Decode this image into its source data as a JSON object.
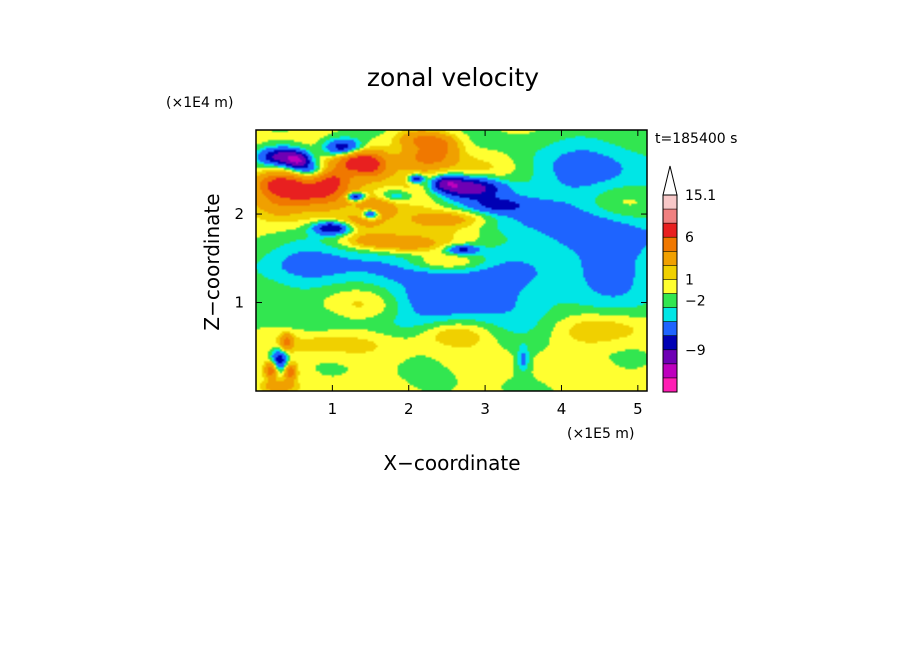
{
  "chart_data": {
    "type": "heatmap",
    "title": "zonal velocity",
    "xlabel": "X−coordinate",
    "ylabel": "Z−coordinate",
    "x_scale_label": "(×1E5 m)",
    "y_scale_label": "(×1E4 m)",
    "time_label": "t=185400 s",
    "xlim": [
      0,
      5.12
    ],
    "ylim": [
      0,
      2.95
    ],
    "x_ticks": [
      {
        "value": 1,
        "label": "1"
      },
      {
        "value": 2,
        "label": "2"
      },
      {
        "value": 3,
        "label": "3"
      },
      {
        "value": 4,
        "label": "4"
      },
      {
        "value": 5,
        "label": "5"
      }
    ],
    "y_ticks": [
      {
        "value": 1,
        "label": "1"
      },
      {
        "value": 2,
        "label": "2"
      }
    ],
    "colorbar": {
      "labels": [
        "15.1",
        "6",
        "1",
        "−2",
        "−9"
      ],
      "colors": [
        "#f8c8c8",
        "#f08080",
        "#e82020",
        "#f07800",
        "#f0a000",
        "#f0d000",
        "#ffff30",
        "#32e650",
        "#00e6e6",
        "#1e64ff",
        "#0000b4",
        "#6e00b4",
        "#be00be",
        "#ff1eb4"
      ]
    },
    "features": [
      {
        "x": 3.5,
        "z": 2.0,
        "sx": 2.2,
        "sz": 0.75,
        "v": -2
      },
      {
        "x": 4.6,
        "z": 1.9,
        "sx": 1.0,
        "sz": 0.4,
        "v": -2
      },
      {
        "x": 4.8,
        "z": 1.35,
        "sx": 0.5,
        "sz": 0.3,
        "v": -1.5
      },
      {
        "x": 0.6,
        "z": 1.45,
        "sx": 0.9,
        "sz": 0.22,
        "v": -2
      },
      {
        "x": 2.2,
        "z": 1.35,
        "sx": 1.6,
        "sz": 0.22,
        "v": -2
      },
      {
        "x": 2.5,
        "z": 1.05,
        "sx": 0.7,
        "sz": 0.18,
        "v": -2.5
      },
      {
        "x": 1.2,
        "z": 0.75,
        "sx": 1.4,
        "sz": 0.28,
        "v": -2
      },
      {
        "x": 3.8,
        "z": 0.9,
        "sx": 1.8,
        "sz": 0.3,
        "v": -1.5
      },
      {
        "x": 4.5,
        "z": 2.6,
        "sx": 0.9,
        "sz": 0.35,
        "v": -1.5
      },
      {
        "x": 1.4,
        "z": 0.95,
        "sx": 0.7,
        "sz": 0.2,
        "v": 2.5
      },
      {
        "x": 2.6,
        "z": 0.65,
        "sx": 0.5,
        "sz": 0.15,
        "v": 2.5
      },
      {
        "x": 4.5,
        "z": 0.7,
        "sx": 0.6,
        "sz": 0.2,
        "v": 2.5
      },
      {
        "x": 0.9,
        "z": 0.55,
        "sx": 0.9,
        "sz": 0.18,
        "v": 2.5
      },
      {
        "x": 2.0,
        "z": 2.25,
        "sx": 0.5,
        "sz": 0.5,
        "v": 2.5
      },
      {
        "x": 4.7,
        "z": 2.1,
        "sx": 0.6,
        "sz": 0.25,
        "v": 2.5
      },
      {
        "x": 3.0,
        "z": 2.5,
        "sx": 0.5,
        "sz": 0.25,
        "v": 2.5
      },
      {
        "x": 0.3,
        "z": 2.2,
        "sx": 0.35,
        "sz": 0.3,
        "v": 3
      },
      {
        "x": 0.8,
        "z": 2.25,
        "sx": 0.5,
        "sz": 0.18,
        "v": 6.5
      },
      {
        "x": 0.3,
        "z": 2.35,
        "sx": 0.28,
        "sz": 0.12,
        "v": 4
      },
      {
        "x": 1.0,
        "z": 2.4,
        "sx": 0.2,
        "sz": 0.12,
        "v": 3
      },
      {
        "x": 1.3,
        "z": 2.6,
        "sx": 0.25,
        "sz": 0.15,
        "v": 6
      },
      {
        "x": 1.55,
        "z": 2.55,
        "sx": 0.2,
        "sz": 0.15,
        "v": 4
      },
      {
        "x": 1.6,
        "z": 2.1,
        "sx": 0.25,
        "sz": 0.12,
        "v": 3.5
      },
      {
        "x": 2.3,
        "z": 2.65,
        "sx": 0.35,
        "sz": 0.12,
        "v": 4
      },
      {
        "x": 2.15,
        "z": 2.85,
        "sx": 0.3,
        "sz": 0.1,
        "v": 3.5
      },
      {
        "x": 2.45,
        "z": 2.8,
        "sx": 0.25,
        "sz": 0.1,
        "v": 3
      },
      {
        "x": 2.6,
        "z": 1.95,
        "sx": 0.5,
        "sz": 0.1,
        "v": 3
      },
      {
        "x": 2.5,
        "z": 1.45,
        "sx": 0.55,
        "sz": 0.1,
        "v": 3
      },
      {
        "x": 2.0,
        "z": 1.65,
        "sx": 0.45,
        "sz": 0.1,
        "v": 3
      },
      {
        "x": 1.2,
        "z": 1.9,
        "sx": 0.5,
        "sz": 0.1,
        "v": 3
      },
      {
        "x": 1.5,
        "z": 1.7,
        "sx": 0.4,
        "sz": 0.1,
        "v": 3
      },
      {
        "x": 0.35,
        "z": 2.65,
        "sx": 0.3,
        "sz": 0.1,
        "v": -7.5
      },
      {
        "x": 0.55,
        "z": 2.6,
        "sx": 0.15,
        "sz": 0.08,
        "v": -6.5
      },
      {
        "x": 1.15,
        "z": 2.75,
        "sx": 0.25,
        "sz": 0.1,
        "v": -7
      },
      {
        "x": 1.0,
        "z": 1.85,
        "sx": 0.25,
        "sz": 0.08,
        "v": -7.5
      },
      {
        "x": 2.8,
        "z": 2.3,
        "sx": 0.4,
        "sz": 0.12,
        "v": -7.5
      },
      {
        "x": 2.5,
        "z": 2.35,
        "sx": 0.2,
        "sz": 0.08,
        "v": -6
      },
      {
        "x": 1.3,
        "z": 2.2,
        "sx": 0.12,
        "sz": 0.05,
        "v": -7
      },
      {
        "x": 1.5,
        "z": 2.0,
        "sx": 0.1,
        "sz": 0.05,
        "v": -6
      },
      {
        "x": 2.1,
        "z": 2.4,
        "sx": 0.1,
        "sz": 0.05,
        "v": -6
      },
      {
        "x": 0.7,
        "z": 2.5,
        "sx": 0.2,
        "sz": 0.08,
        "v": -3.5
      },
      {
        "x": 1.8,
        "z": 2.2,
        "sx": 0.25,
        "sz": 0.08,
        "v": -3
      },
      {
        "x": 3.2,
        "z": 2.1,
        "sx": 0.35,
        "sz": 0.08,
        "v": -3
      },
      {
        "x": 2.7,
        "z": 1.6,
        "sx": 0.2,
        "sz": 0.05,
        "v": -4.5
      },
      {
        "x": 1.2,
        "z": 2.55,
        "sx": 0.5,
        "sz": 0.25,
        "v": 1.2
      },
      {
        "x": 2.7,
        "z": 1.75,
        "sx": 0.8,
        "sz": 0.2,
        "v": 1.5
      },
      {
        "x": 0.3,
        "z": 0.35,
        "sx": 0.12,
        "sz": 0.12,
        "v": -6
      },
      {
        "x": 0.2,
        "z": 0.25,
        "sx": 0.08,
        "sz": 0.1,
        "v": 6
      },
      {
        "x": 0.45,
        "z": 0.22,
        "sx": 0.08,
        "sz": 0.1,
        "v": 5
      },
      {
        "x": 0.4,
        "z": 0.55,
        "sx": 0.08,
        "sz": 0.1,
        "v": 4
      },
      {
        "x": 0.3,
        "z": 0.05,
        "sx": 0.2,
        "sz": 0.06,
        "v": 3
      },
      {
        "x": 3.5,
        "z": 0.35,
        "sx": 0.08,
        "sz": 0.15,
        "v": -2.5
      }
    ]
  }
}
